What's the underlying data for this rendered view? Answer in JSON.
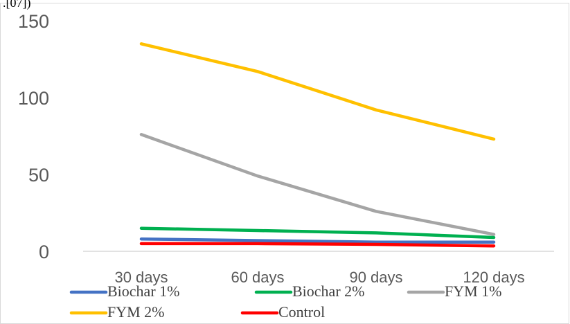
{
  "chart_data": {
    "type": "line",
    "title": "",
    "xlabel": "",
    "ylabel": "",
    "categories": [
      "30 days",
      "60 days",
      "90 days",
      "120 days"
    ],
    "ylim": [
      0,
      150
    ],
    "yticks": [
      0,
      50,
      100,
      150
    ],
    "grid": false,
    "legend_position": "bottom",
    "series": [
      {
        "name": "Biochar 1%",
        "color": "#4472C4",
        "values": [
          8,
          7,
          6,
          6
        ]
      },
      {
        "name": "Biochar 2%",
        "color": "#00B050",
        "values": [
          15,
          13.5,
          12,
          9
        ]
      },
      {
        "name": "FYM 1%",
        "color": "#A5A5A5",
        "values": [
          76,
          49,
          26,
          11
        ]
      },
      {
        "name": "FYM 2%",
        "color": "#FFC000",
        "values": [
          135,
          117,
          92,
          73
        ]
      },
      {
        "name": "Control",
        "color": "#FF0000",
        "values": [
          5,
          5,
          4.5,
          3.5
        ]
      }
    ]
  },
  "clipped_text": ".[07])"
}
